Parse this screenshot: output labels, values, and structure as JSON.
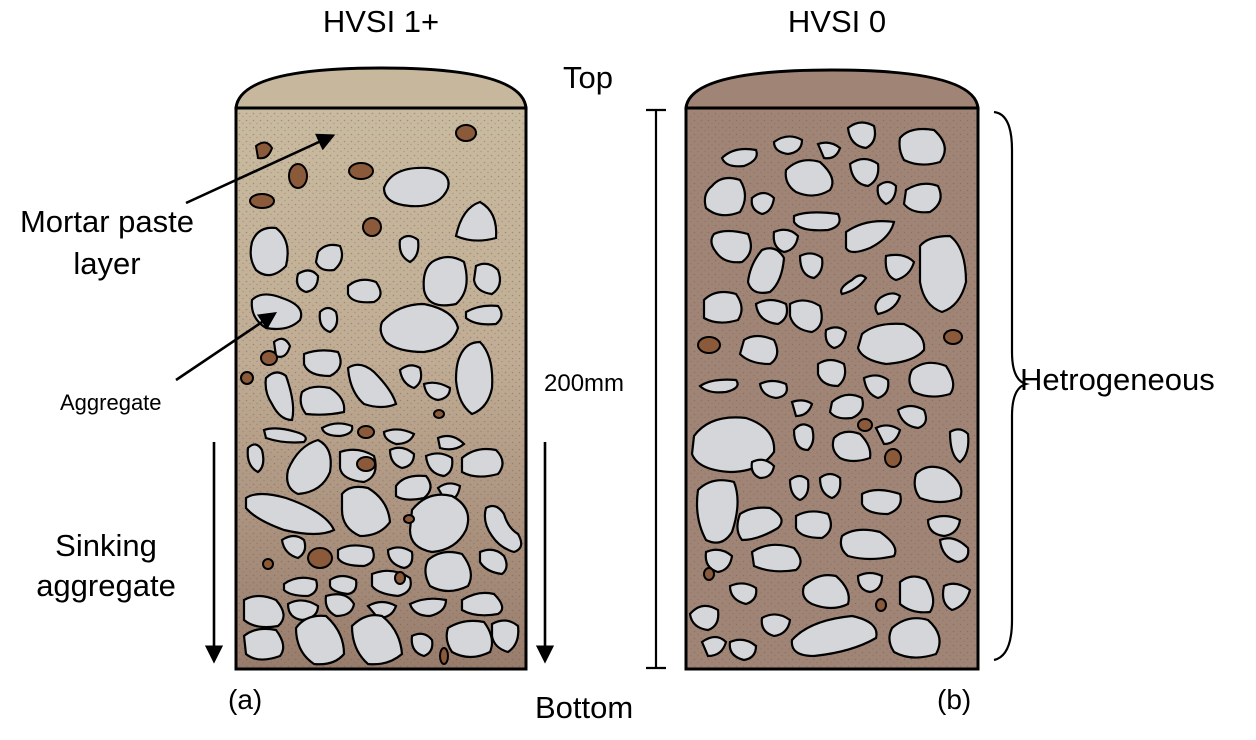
{
  "labels": {
    "title_a": "HVSI 1+",
    "title_b": "HVSI 0",
    "top": "Top",
    "bottom": "Bottom",
    "mortar_line1": "Mortar paste",
    "mortar_line2": "layer",
    "aggregate": "Aggregate",
    "sinking_line1": "Sinking",
    "sinking_line2": "aggregate",
    "dimension": "200mm",
    "heterogeneous": "Hetrogeneous",
    "panel_a": "(a)",
    "panel_b": "(b)"
  },
  "colors": {
    "cylinder_a_top": "#c6b79d",
    "cylinder_a_bottom": "#9c8171",
    "cylinder_b": "#a08576",
    "aggregate": "#d4d6d9",
    "small_aggregate": "#8a5a3a",
    "outline": "#000000"
  }
}
